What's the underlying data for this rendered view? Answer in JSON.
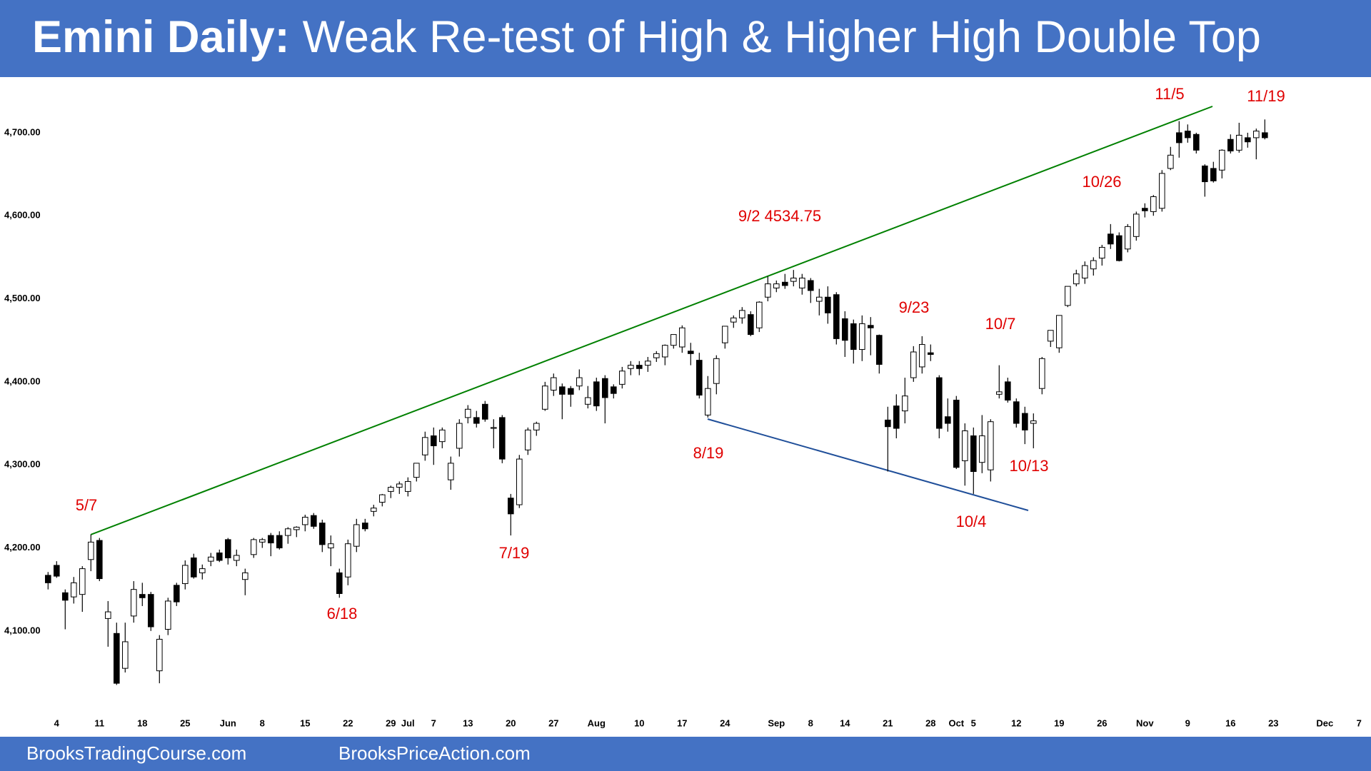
{
  "chart_data": {
    "type": "candlestick",
    "title": "Emini Daily:",
    "subtitle": "Weak Re-test of High & Higher High Double Top",
    "footer": [
      "BrooksTradingCourse.com",
      "BrooksPriceAction.com"
    ],
    "annotations": [
      "5/7",
      "6/18",
      "7/19",
      "8/19",
      "9/2 4534.75",
      "9/23",
      "10/7",
      "10/4",
      "10/13",
      "10/26",
      "11/5",
      "11/19"
    ],
    "categories": [
      null,
      "4",
      null,
      null,
      null,
      null,
      "11",
      null,
      null,
      null,
      null,
      "18",
      null,
      null,
      null,
      null,
      "25",
      null,
      null,
      null,
      null,
      "Jun",
      null,
      null,
      null,
      "8",
      null,
      null,
      null,
      null,
      "15",
      null,
      null,
      null,
      null,
      "22",
      null,
      null,
      null,
      null,
      "29",
      null,
      "Jul",
      null,
      null,
      "7",
      null,
      null,
      null,
      "13",
      null,
      null,
      null,
      null,
      "20",
      null,
      null,
      null,
      null,
      "27",
      null,
      null,
      null,
      null,
      "Aug",
      null,
      null,
      null,
      null,
      "10",
      null,
      null,
      null,
      null,
      "17",
      null,
      null,
      null,
      null,
      "24",
      null,
      null,
      null,
      null,
      null,
      "Sep",
      null,
      null,
      null,
      "8",
      null,
      null,
      null,
      "14",
      null,
      null,
      null,
      null,
      "21",
      null,
      null,
      null,
      null,
      "28",
      null,
      null,
      "Oct",
      null,
      "5",
      null,
      null,
      null,
      null,
      "12",
      null,
      null,
      null,
      null,
      "19",
      null,
      null,
      null,
      null,
      "26",
      null,
      null,
      null,
      null,
      "Nov",
      null,
      null,
      null,
      null,
      "9",
      null,
      null,
      null,
      null,
      "16",
      null,
      null,
      null,
      null,
      "23",
      null,
      null,
      null,
      null,
      null,
      "Dec",
      null,
      null,
      null,
      "7"
    ],
    "open": [
      4167,
      4179,
      4146,
      4141,
      4144,
      4186,
      4209,
      4115,
      4097,
      4055,
      4118,
      4144,
      4144,
      4052,
      4102,
      4155,
      4157,
      4188,
      4170,
      4184,
      4194,
      4210,
      4185,
      4162,
      4192,
      4207,
      4215,
      4215,
      4215,
      4222,
      4228,
      4239,
      4230,
      4200,
      4170,
      4165,
      4202,
      4230,
      4244,
      4255,
      4268,
      4273,
      4268,
      4285,
      4312,
      4335,
      4328,
      4282,
      4320,
      4357,
      4357,
      4373,
      4344,
      4357,
      4260,
      4252,
      4318,
      4342,
      4367,
      4390,
      4394,
      4392,
      4395,
      4373,
      4400,
      4404,
      4394,
      4397,
      4416,
      4420,
      4420,
      4429,
      4430,
      4444,
      4442,
      4437,
      4426,
      4360,
      4398,
      4447,
      4472,
      4477,
      4481,
      4465,
      4502,
      4513,
      4520,
      4521,
      4513,
      4522,
      4497,
      4502,
      4505,
      4476,
      4470,
      4439,
      4468,
      4456,
      4354,
      4371,
      4365,
      4405,
      4418,
      4435,
      4405,
      4358,
      4378,
      4305,
      4335,
      4303,
      4294,
      4385,
      4400,
      4376,
      4362,
      4350,
      4392,
      4449,
      4441,
      4492,
      4518,
      4525,
      4536,
      4549,
      4578,
      4576,
      4560,
      4575,
      4609,
      4605,
      4609,
      4657,
      4700,
      4702,
      4698,
      4660,
      4657,
      4655,
      4692,
      4679,
      4694,
      4694,
      4700,
      null,
      null,
      null,
      null,
      null,
      null,
      null,
      null,
      null,
      null,
      null
    ],
    "high": [
      4171,
      4184,
      4150,
      4165,
      4178,
      4216,
      4212,
      4136,
      4110,
      4110,
      4160,
      4158,
      4147,
      4095,
      4140,
      4158,
      4185,
      4193,
      4180,
      4194,
      4198,
      4212,
      4198,
      4175,
      4212,
      4212,
      4218,
      4220,
      4225,
      4226,
      4240,
      4242,
      4234,
      4215,
      4175,
      4210,
      4235,
      4235,
      4252,
      4265,
      4275,
      4280,
      4285,
      4302,
      4340,
      4345,
      4345,
      4310,
      4355,
      4372,
      4365,
      4377,
      4355,
      4360,
      4265,
      4312,
      4345,
      4352,
      4400,
      4410,
      4398,
      4395,
      4415,
      4395,
      4405,
      4408,
      4397,
      4418,
      4425,
      4425,
      4430,
      4437,
      4445,
      4457,
      4468,
      4447,
      4435,
      4407,
      4432,
      4467,
      4480,
      4490,
      4485,
      4497,
      4527,
      4522,
      4530,
      4534.75,
      4530,
      4525,
      4512,
      4515,
      4508,
      4485,
      4475,
      4480,
      4478,
      4457,
      4370,
      4385,
      4405,
      4443,
      4455,
      4445,
      4408,
      4380,
      4383,
      4350,
      4345,
      4360,
      4355,
      4420,
      4405,
      4380,
      4370,
      4362,
      4430,
      4462,
      4480,
      4515,
      4535,
      4545,
      4550,
      4565,
      4590,
      4580,
      4590,
      4605,
      4615,
      4625,
      4655,
      4683,
      4714,
      4710,
      4700,
      4662,
      4665,
      4680,
      4698,
      4712,
      4700,
      4705,
      4716,
      null,
      null,
      null,
      null,
      null,
      null,
      null,
      null,
      null,
      null,
      null
    ],
    "low": [
      4150,
      4164,
      4102,
      4133,
      4123,
      4172,
      4160,
      4081,
      4035,
      4050,
      4110,
      4130,
      4100,
      4037,
      4095,
      4130,
      4150,
      4163,
      4162,
      4178,
      4183,
      4180,
      4178,
      4143,
      4188,
      4200,
      4190,
      4198,
      4205,
      4213,
      4220,
      4223,
      4195,
      4178,
      4140,
      4155,
      4195,
      4220,
      4238,
      4250,
      4260,
      4265,
      4262,
      4280,
      4305,
      4300,
      4320,
      4270,
      4310,
      4350,
      4345,
      4352,
      4320,
      4302,
      4215,
      4248,
      4312,
      4335,
      4365,
      4383,
      4355,
      4370,
      4390,
      4368,
      4365,
      4350,
      4380,
      4392,
      4408,
      4408,
      4412,
      4424,
      4420,
      4440,
      4435,
      4420,
      4380,
      4357,
      4385,
      4440,
      4465,
      4470,
      4455,
      4460,
      4497,
      4508,
      4512,
      4515,
      4505,
      4495,
      4480,
      4470,
      4445,
      4430,
      4422,
      4425,
      4432,
      4410,
      4292,
      4332,
      4350,
      4400,
      4410,
      4425,
      4332,
      4340,
      4295,
      4275,
      4265,
      4290,
      4280,
      4380,
      4375,
      4345,
      4325,
      4320,
      4385,
      4442,
      4435,
      4490,
      4515,
      4518,
      4528,
      4540,
      4560,
      4545,
      4556,
      4570,
      4598,
      4600,
      4605,
      4655,
      4670,
      4688,
      4675,
      4623,
      4640,
      4645,
      4675,
      4676,
      4682,
      4668,
      4692,
      null,
      null,
      null,
      null,
      null,
      null,
      null,
      null,
      null,
      null,
      null
    ],
    "close": [
      4158,
      4166,
      4137,
      4158,
      4175,
      4207,
      4163,
      4123,
      4037,
      4087,
      4150,
      4140,
      4105,
      4090,
      4136,
      4135,
      4179,
      4165,
      4175,
      4189,
      4185,
      4188,
      4191,
      4170,
      4210,
      4210,
      4206,
      4200,
      4223,
      4225,
      4237,
      4226,
      4204,
      4205,
      4145,
      4205,
      4228,
      4223,
      4248,
      4264,
      4273,
      4277,
      4280,
      4302,
      4333,
      4323,
      4342,
      4302,
      4350,
      4367,
      4350,
      4355,
      4345,
      4307,
      4241,
      4307,
      4342,
      4350,
      4395,
      4405,
      4385,
      4385,
      4405,
      4381,
      4371,
      4381,
      4386,
      4413,
      4420,
      4416,
      4425,
      4434,
      4444,
      4457,
      4465,
      4434,
      4384,
      4392,
      4428,
      4467,
      4477,
      4486,
      4457,
      4496,
      4518,
      4518,
      4516,
      4525,
      4525,
      4510,
      4502,
      4483,
      4452,
      4450,
      4439,
      4470,
      4465,
      4421,
      4346,
      4344,
      4383,
      4436,
      4445,
      4433,
      4344,
      4350,
      4297,
      4341,
      4292,
      4335,
      4352,
      4388,
      4378,
      4350,
      4342,
      4353,
      4428,
      4462,
      4480,
      4515,
      4530,
      4540,
      4546,
      4562,
      4566,
      4546,
      4587,
      4602,
      4606,
      4623,
      4651,
      4673,
      4688,
      4694,
      4679,
      4641,
      4642,
      4679,
      4678,
      4697,
      4689,
      4702,
      4694,
      null,
      null,
      null,
      null,
      null,
      null,
      null,
      null,
      null,
      null,
      null
    ],
    "ylim": [
      4007,
      4767
    ],
    "yticks": [
      {
        "value": 4100,
        "label": "4,100.00"
      },
      {
        "value": 4200,
        "label": "4,200.00"
      },
      {
        "value": 4300,
        "label": "4,300.00"
      },
      {
        "value": 4400,
        "label": "4,400.00"
      },
      {
        "value": 4500,
        "label": "4,500.00"
      },
      {
        "value": 4600,
        "label": "4,600.00"
      },
      {
        "value": 4700,
        "label": "4,700.00"
      }
    ],
    "up_color": "#ffffff",
    "down_color": "#000000",
    "annotation_color": "#e00000"
  }
}
